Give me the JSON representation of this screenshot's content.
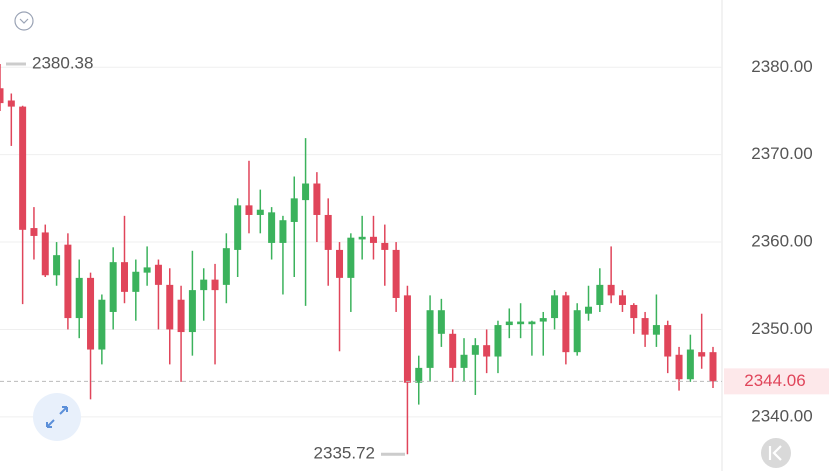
{
  "chart_data": {
    "type": "candlestick",
    "up_color": "#3bb25c",
    "down_color": "#e0455a",
    "open": [
      2377.6,
      2376.2,
      2375.5,
      2361.6,
      2361.1,
      2356.2,
      2359.7,
      2351.3,
      2355.9,
      2347.7,
      2352,
      2357.7,
      2354.3,
      2356.5,
      2357.4,
      2355.1,
      2353.4,
      2349.7,
      2354.5,
      2355.7,
      2355.1,
      2359.1,
      2364.2,
      2363.1,
      2359.9,
      2359.9,
      2362.3,
      2364.8,
      2366.7,
      2363.1,
      2359.1,
      2355.9,
      2360.3,
      2360.6,
      2359.9,
      2359.1,
      2353.9,
      2343.9,
      2345.6,
      2349.5,
      2349.5,
      2345.6,
      2347.1,
      2348.2,
      2346.9,
      2350.5,
      2350.6,
      2350.6,
      2350.9,
      2351.3,
      2353.9,
      2347.4,
      2351.8,
      2352.8,
      2355.1,
      2353.9,
      2352.8,
      2351.3,
      2349.4,
      2350.5,
      2347.1,
      2344.3,
      2347.4,
      2347.4
    ],
    "high": [
      2380.38,
      2377,
      2375.6,
      2364,
      2362,
      2360,
      2361,
      2358,
      2356.5,
      2354,
      2359.4,
      2363,
      2358,
      2359.5,
      2358,
      2357,
      2355,
      2359,
      2357,
      2357.5,
      2361,
      2365,
      2369.3,
      2366,
      2364,
      2363,
      2367.5,
      2371.9,
      2368,
      2365,
      2360,
      2361,
      2363,
      2363,
      2362,
      2360,
      2355,
      2347,
      2353.9,
      2353.5,
      2350,
      2349,
      2349,
      2350,
      2351,
      2352.4,
      2353,
      2351,
      2352,
      2354.5,
      2354.3,
      2353,
      2355,
      2357,
      2359.5,
      2354.5,
      2353,
      2352,
      2354,
      2351,
      2348,
      2349.4,
      2351.8,
      2348
    ],
    "low": [
      2375,
      2371,
      2352.9,
      2358,
      2356,
      2355,
      2350,
      2349,
      2342,
      2346,
      2350,
      2353,
      2351,
      2355,
      2350,
      2346,
      2344,
      2347,
      2351,
      2346,
      2353,
      2356,
      2361,
      2361,
      2358,
      2354,
      2356,
      2352.7,
      2360,
      2355,
      2347.5,
      2352,
      2358,
      2358,
      2355,
      2352,
      2335.72,
      2341.4,
      2344,
      2348,
      2344,
      2344,
      2342.5,
      2345,
      2345,
      2349,
      2349,
      2347,
      2347,
      2350,
      2346,
      2347,
      2351,
      2352,
      2353,
      2352,
      2349.5,
      2348,
      2348,
      2345,
      2343,
      2344,
      2345.5,
      2343.3
    ],
    "close": [
      2375.9,
      2375.5,
      2361.4,
      2360.7,
      2356.2,
      2358.5,
      2351.3,
      2355.9,
      2347.7,
      2353.4,
      2357.7,
      2354.3,
      2356.6,
      2357.1,
      2355.1,
      2350,
      2349.7,
      2354.5,
      2355.7,
      2354.5,
      2359.3,
      2364.2,
      2363.1,
      2363.7,
      2363.4,
      2362.5,
      2365,
      2366.7,
      2363.1,
      2359.1,
      2355.9,
      2360.5,
      2360.6,
      2359.9,
      2359.1,
      2353.6,
      2343.9,
      2345.6,
      2352.2,
      2352.2,
      2345.6,
      2347.1,
      2348.2,
      2346.9,
      2350.5,
      2350.9,
      2350.9,
      2350.9,
      2351.3,
      2353.9,
      2347.4,
      2352.2,
      2352.6,
      2355.1,
      2353.9,
      2352.8,
      2351.3,
      2349.4,
      2350.5,
      2346.9,
      2344.3,
      2347.7,
      2346.9,
      2344.06
    ],
    "ylim": [
      2333.8,
      2387.7
    ],
    "yticks": [
      {
        "value": 2340,
        "label": "2340.00"
      },
      {
        "value": 2350,
        "label": "2350.00"
      },
      {
        "value": 2360,
        "label": "2360.00"
      },
      {
        "value": 2370,
        "label": "2370.00"
      },
      {
        "value": 2380,
        "label": "2380.00"
      }
    ],
    "grid": true,
    "last_price": 2344.06,
    "high_marker": 2380.38,
    "low_marker": 2335.72
  }
}
